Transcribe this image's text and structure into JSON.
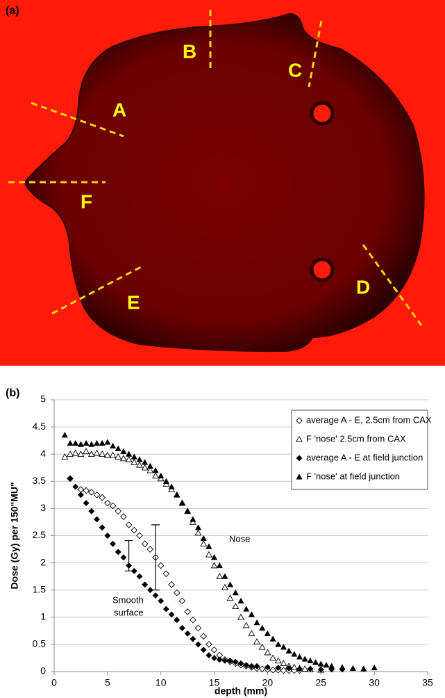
{
  "panel_a": {
    "label": "(a)",
    "regions": [
      "A",
      "B",
      "C",
      "D",
      "E",
      "F"
    ]
  },
  "chart_data": {
    "type": "scatter",
    "panel_label": "(b)",
    "x_label": "depth (mm)",
    "y_label": "Dose (Gy) per 150\"MU\"",
    "xlim": [
      0,
      35
    ],
    "xticks": [
      0,
      5,
      10,
      15,
      20,
      25,
      30,
      35
    ],
    "ylim": [
      0,
      5
    ],
    "yticks": [
      0,
      0.5,
      1,
      1.5,
      2,
      2.5,
      3,
      3.5,
      4,
      4.5,
      5
    ],
    "grid": true,
    "legend": "upper right",
    "annotations": [
      "Nose",
      "Smooth",
      "surface"
    ],
    "series": [
      {
        "name": "average A - E, 2.5cm from CAX",
        "color": "#000000",
        "marker": "diamond-open",
        "x": [
          1.5,
          2.5,
          3,
          3.5,
          4,
          4.5,
          5,
          5.5,
          6,
          6.5,
          7,
          7.5,
          8,
          8.5,
          9,
          9.5,
          10,
          10.5,
          11,
          11.5,
          12,
          12.5,
          13,
          13.5,
          14,
          14.5,
          15,
          15.5,
          16,
          16.5,
          17,
          17.5,
          18,
          18.5,
          19,
          19.5,
          20,
          20.5,
          21,
          21.5,
          22,
          22.5,
          23
        ],
        "values": [
          3.55,
          3.35,
          3.33,
          3.3,
          3.25,
          3.2,
          3.1,
          3.05,
          2.95,
          2.85,
          2.7,
          2.6,
          2.5,
          2.35,
          2.25,
          2.1,
          1.95,
          1.8,
          1.6,
          1.45,
          1.3,
          1.1,
          0.95,
          0.8,
          0.65,
          0.5,
          0.4,
          0.3,
          0.22,
          0.18,
          0.15,
          0.12,
          0.1,
          0.08,
          0.06,
          0.05,
          0.04,
          0.03,
          0.03,
          0.02,
          0.02,
          0.02,
          0.02
        ]
      },
      {
        "name": "F 'nose' 2.5cm from CAX",
        "color": "#000000",
        "marker": "triangle-open",
        "x": [
          1,
          1.5,
          2,
          2.5,
          3,
          3.5,
          4,
          4.5,
          5,
          5.5,
          6,
          6.5,
          7,
          7.5,
          8,
          8.5,
          9,
          9.5,
          10,
          10.5,
          11,
          11.5,
          12,
          12.5,
          13,
          13.5,
          14,
          14.5,
          15,
          15.5,
          16,
          16.5,
          17,
          17.5,
          18,
          18.5,
          19,
          19.5,
          20,
          20.5,
          21,
          21.5,
          22,
          22.5,
          23,
          23.5,
          24,
          25
        ],
        "values": [
          3.95,
          4.0,
          4.02,
          4.0,
          4.05,
          4.0,
          4.02,
          4.0,
          3.98,
          3.98,
          3.95,
          3.92,
          3.9,
          3.85,
          3.8,
          3.75,
          3.7,
          3.6,
          3.55,
          3.45,
          3.35,
          3.25,
          3.1,
          2.95,
          2.75,
          2.55,
          2.35,
          2.15,
          1.95,
          1.75,
          1.55,
          1.35,
          1.2,
          1.0,
          0.85,
          0.7,
          0.55,
          0.45,
          0.35,
          0.25,
          0.2,
          0.15,
          0.1,
          0.08,
          0.06,
          0.05,
          0.04,
          0.03
        ]
      },
      {
        "name": "average A - E at field junction",
        "color": "#000000",
        "marker": "diamond",
        "x": [
          1.5,
          2,
          2.5,
          3,
          3.5,
          4,
          4.5,
          5,
          5.5,
          6,
          6.5,
          7,
          7.5,
          8,
          8.5,
          9,
          9.5,
          10,
          10.5,
          11,
          11.5,
          12,
          12.5,
          13,
          13.5,
          14,
          14.5,
          15,
          15.5,
          16,
          16.5,
          17,
          17.5,
          18,
          18.5,
          19,
          20,
          21,
          22,
          23,
          24,
          25,
          26,
          27
        ],
        "values": [
          3.55,
          3.4,
          3.25,
          3.1,
          2.95,
          2.8,
          2.65,
          2.5,
          2.35,
          2.2,
          2.1,
          1.95,
          1.85,
          1.75,
          1.6,
          1.5,
          1.4,
          1.3,
          1.15,
          1.05,
          0.95,
          0.8,
          0.7,
          0.6,
          0.5,
          0.4,
          0.3,
          0.25,
          0.22,
          0.2,
          0.2,
          0.18,
          0.15,
          0.12,
          0.1,
          0.1,
          0.08,
          0.07,
          0.06,
          0.05,
          0.05,
          0.04,
          0.04,
          0.04
        ]
      },
      {
        "name": "F 'nose' at field junction",
        "color": "#000000",
        "marker": "triangle",
        "x": [
          1,
          1.5,
          2,
          2.5,
          3,
          3.5,
          4,
          4.5,
          5,
          5.5,
          6,
          6.5,
          7,
          7.5,
          8,
          8.5,
          9,
          9.5,
          10,
          10.5,
          11,
          11.5,
          12,
          12.5,
          13,
          13.5,
          14,
          14.5,
          15,
          15.5,
          16,
          16.5,
          17,
          17.5,
          18,
          18.5,
          19,
          19.5,
          20,
          20.5,
          21,
          21.5,
          22,
          22.5,
          23,
          23.5,
          24,
          24.5,
          25,
          25.5,
          26,
          27,
          28,
          29,
          30
        ],
        "values": [
          4.35,
          4.2,
          4.2,
          4.18,
          4.2,
          4.18,
          4.2,
          4.2,
          4.22,
          4.15,
          4.1,
          4.05,
          4.0,
          3.95,
          3.9,
          3.85,
          3.78,
          3.7,
          3.6,
          3.5,
          3.4,
          3.25,
          3.1,
          2.95,
          2.8,
          2.65,
          2.45,
          2.3,
          2.1,
          1.95,
          1.75,
          1.6,
          1.45,
          1.3,
          1.15,
          1.05,
          0.9,
          0.8,
          0.7,
          0.6,
          0.5,
          0.45,
          0.38,
          0.32,
          0.27,
          0.23,
          0.2,
          0.17,
          0.14,
          0.12,
          0.1,
          0.08,
          0.06,
          0.05,
          0.07
        ]
      }
    ],
    "error_bars": [
      {
        "x": 7,
        "value": 2.13,
        "error": 0.28
      },
      {
        "x": 9.5,
        "value": 2.1,
        "error": 0.6
      }
    ]
  }
}
